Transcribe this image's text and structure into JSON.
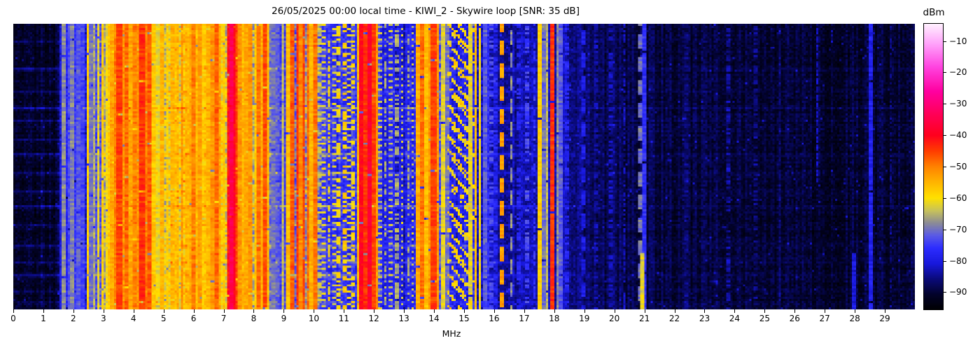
{
  "chart_data": {
    "type": "heatmap",
    "title": "26/05/2025 00:00 local time - KIWI_2 - Skywire loop [SNR: 35 dB]",
    "station": "KIWI_2",
    "antenna": "Skywire loop",
    "snr_db": 35,
    "date_label": "26/05/2025 00:00 local time",
    "xlabel": "MHz",
    "colorbar_label": "dBm",
    "x_range": [
      0,
      30
    ],
    "x_ticks": [
      0,
      1,
      2,
      3,
      4,
      5,
      6,
      7,
      8,
      9,
      10,
      11,
      12,
      13,
      14,
      15,
      16,
      17,
      18,
      19,
      20,
      21,
      22,
      23,
      24,
      25,
      26,
      27,
      28,
      29
    ],
    "value_range_dbm": [
      -95.5,
      -4.5
    ],
    "colorbar_ticks": [
      {
        "v": -10,
        "label": "−10"
      },
      {
        "v": -20,
        "label": "−20"
      },
      {
        "v": -30,
        "label": "−30"
      },
      {
        "v": -40,
        "label": "−40"
      },
      {
        "v": -50,
        "label": "−50"
      },
      {
        "v": -60,
        "label": "−60"
      },
      {
        "v": -70,
        "label": "−70"
      },
      {
        "v": -80,
        "label": "−80"
      },
      {
        "v": -90,
        "label": "−90"
      }
    ],
    "grid_cols": 430,
    "grid_rows": 137,
    "colormap_stops": [
      [
        -95.5,
        "#000004"
      ],
      [
        -91,
        "#020228"
      ],
      [
        -86,
        "#0a0a78"
      ],
      [
        -81,
        "#1818dc"
      ],
      [
        -76,
        "#2d2dff"
      ],
      [
        -72,
        "#5a5ae6"
      ],
      [
        -68,
        "#8c8c96"
      ],
      [
        -64,
        "#c8c35a"
      ],
      [
        -60,
        "#ffe100"
      ],
      [
        -55,
        "#ffb400"
      ],
      [
        -50,
        "#ff8200"
      ],
      [
        -45,
        "#ff3c00"
      ],
      [
        -40,
        "#ff001e"
      ],
      [
        -33,
        "#ff005a"
      ],
      [
        -26,
        "#ff00a0"
      ],
      [
        -18,
        "#ff46e1"
      ],
      [
        -11,
        "#ffa0fa"
      ],
      [
        -4.5,
        "#fff0ff"
      ]
    ],
    "noise_floor_dbm": [
      [
        0,
        -91
      ],
      [
        1.45,
        -91
      ],
      [
        1.55,
        -86
      ],
      [
        1.95,
        -83
      ],
      [
        2.1,
        -80
      ],
      [
        2.35,
        -79
      ],
      [
        2.6,
        -77
      ],
      [
        2.85,
        -73
      ],
      [
        3.1,
        -68
      ],
      [
        3.25,
        -63
      ],
      [
        3.45,
        -61
      ],
      [
        4.45,
        -62
      ],
      [
        4.7,
        -68
      ],
      [
        5.05,
        -66
      ],
      [
        5.25,
        -62
      ],
      [
        5.55,
        -60
      ],
      [
        6.35,
        -62
      ],
      [
        6.55,
        -63
      ],
      [
        7.05,
        -62
      ],
      [
        7.15,
        -58
      ],
      [
        7.45,
        -58
      ],
      [
        7.65,
        -62
      ],
      [
        8.0,
        -63
      ],
      [
        8.45,
        -67
      ],
      [
        8.6,
        -76
      ],
      [
        9.1,
        -75
      ],
      [
        9.35,
        -72
      ],
      [
        9.8,
        -63
      ],
      [
        10.05,
        -63
      ],
      [
        10.2,
        -71
      ],
      [
        10.4,
        -76
      ],
      [
        11.2,
        -76
      ],
      [
        11.55,
        -71
      ],
      [
        12.15,
        -72
      ],
      [
        12.35,
        -79
      ],
      [
        13.3,
        -80
      ],
      [
        13.45,
        -74
      ],
      [
        14.15,
        -74
      ],
      [
        14.35,
        -79
      ],
      [
        15.6,
        -80
      ],
      [
        16.0,
        -83
      ],
      [
        16.5,
        -84
      ],
      [
        17.3,
        -84
      ],
      [
        17.9,
        -82
      ],
      [
        18.3,
        -84
      ],
      [
        18.9,
        -86
      ],
      [
        19.5,
        -88
      ],
      [
        20.5,
        -88.5
      ],
      [
        21.2,
        -89.5
      ],
      [
        24,
        -90
      ],
      [
        27,
        -90.5
      ],
      [
        30,
        -90.5
      ]
    ],
    "streak_rows": [
      {
        "t": 0.06,
        "boost": 4
      },
      {
        "t": 0.155,
        "boost": 6
      },
      {
        "t": 0.23,
        "boost": 4
      },
      {
        "t": 0.29,
        "boost": 7
      },
      {
        "t": 0.335,
        "boost": 4
      },
      {
        "t": 0.4,
        "boost": 5
      },
      {
        "t": 0.455,
        "boost": 6
      },
      {
        "t": 0.52,
        "boost": 4
      },
      {
        "t": 0.585,
        "boost": 5
      },
      {
        "t": 0.635,
        "boost": 6
      },
      {
        "t": 0.7,
        "boost": 4
      },
      {
        "t": 0.775,
        "boost": 5
      },
      {
        "t": 0.83,
        "boost": 4
      },
      {
        "t": 0.875,
        "boost": 6
      },
      {
        "t": 0.935,
        "boost": 4
      },
      {
        "t": 0.97,
        "boost": 3
      }
    ],
    "signals": [
      [
        1.58,
        -80,
        0.05,
        "solid"
      ],
      [
        1.66,
        -68,
        0.04,
        "solid"
      ],
      [
        1.76,
        -77,
        0.05,
        "solid"
      ],
      [
        1.88,
        -73,
        0.05,
        "solid"
      ],
      [
        1.97,
        -69,
        0.04,
        "solid"
      ],
      [
        2.06,
        -75,
        0.05,
        "solid"
      ],
      [
        2.18,
        -72,
        0.06,
        "solid"
      ],
      [
        2.32,
        -74,
        0.05,
        "solid"
      ],
      [
        2.47,
        -58,
        0.05,
        "solid"
      ],
      [
        2.56,
        -70,
        0.05,
        "solid"
      ],
      [
        2.69,
        -66,
        0.06,
        "solid"
      ],
      [
        2.83,
        -62,
        0.06,
        "solid"
      ],
      [
        2.96,
        -58,
        0.05,
        "solid"
      ],
      [
        3.1,
        -61,
        0.06,
        "solid"
      ],
      [
        3.2,
        -57,
        0.05,
        "solid"
      ],
      [
        3.3,
        -54,
        0.06,
        "solid"
      ],
      [
        3.42,
        -50,
        0.07,
        "solid"
      ],
      [
        3.53,
        -45,
        0.12,
        "solid"
      ],
      [
        3.66,
        -52,
        0.06,
        "solid"
      ],
      [
        3.79,
        -48,
        0.07,
        "solid"
      ],
      [
        3.92,
        -54,
        0.06,
        "solid"
      ],
      [
        4.04,
        -50,
        0.07,
        "solid"
      ],
      [
        4.16,
        -52,
        0.05,
        "solid"
      ],
      [
        4.28,
        -44,
        0.13,
        "solid"
      ],
      [
        4.42,
        -50,
        0.06,
        "solid"
      ],
      [
        4.54,
        -47,
        0.07,
        "solid"
      ],
      [
        4.68,
        -57,
        0.06,
        "solid"
      ],
      [
        4.8,
        -62,
        0.05,
        "solid"
      ],
      [
        4.96,
        -55,
        0.06,
        "solid"
      ],
      [
        5.12,
        -58,
        0.05,
        "solid"
      ],
      [
        5.3,
        -55,
        0.06,
        "solid"
      ],
      [
        5.45,
        -57,
        0.05,
        "solid"
      ],
      [
        5.62,
        -52,
        0.06,
        "solid"
      ],
      [
        5.78,
        -56,
        0.05,
        "solid"
      ],
      [
        5.92,
        -54,
        0.05,
        "solid"
      ],
      [
        6.02,
        -50,
        0.06,
        "solid"
      ],
      [
        6.12,
        -56,
        0.05,
        "solid"
      ],
      [
        6.22,
        -53,
        0.05,
        "solid"
      ],
      [
        6.35,
        -58,
        0.05,
        "solid"
      ],
      [
        6.5,
        -55,
        0.05,
        "solid"
      ],
      [
        6.62,
        -52,
        0.06,
        "solid"
      ],
      [
        6.74,
        -48,
        0.07,
        "solid"
      ],
      [
        6.88,
        -54,
        0.05,
        "solid"
      ],
      [
        7.02,
        -57,
        0.05,
        "solid"
      ],
      [
        7.18,
        -42,
        0.06,
        "solid"
      ],
      [
        7.25,
        -34,
        0.06,
        "solid"
      ],
      [
        7.32,
        -40,
        0.06,
        "solid"
      ],
      [
        7.4,
        -45,
        0.05,
        "solid"
      ],
      [
        7.52,
        -52,
        0.05,
        "solid"
      ],
      [
        7.65,
        -56,
        0.05,
        "solid"
      ],
      [
        7.76,
        -54,
        0.05,
        "solid"
      ],
      [
        7.9,
        -52,
        0.06,
        "solid"
      ],
      [
        8.05,
        -57,
        0.05,
        "solid"
      ],
      [
        8.14,
        -49,
        0.06,
        "solid"
      ],
      [
        8.24,
        -55,
        0.05,
        "solid"
      ],
      [
        8.35,
        -46,
        0.08,
        "solid"
      ],
      [
        8.46,
        -56,
        0.05,
        "solid"
      ],
      [
        8.66,
        -70,
        0.05,
        "solid"
      ],
      [
        8.8,
        -72,
        0.05,
        "solid"
      ],
      [
        8.96,
        -64,
        0.05,
        "solid"
      ],
      [
        9.12,
        -56,
        0.05,
        "solid"
      ],
      [
        9.27,
        -47,
        0.06,
        "solid"
      ],
      [
        9.45,
        -44,
        0.06,
        "solid"
      ],
      [
        9.57,
        -51,
        0.05,
        "solid"
      ],
      [
        9.66,
        -45,
        0.06,
        "solid"
      ],
      [
        9.8,
        -48,
        0.06,
        "solid"
      ],
      [
        9.92,
        -55,
        0.05,
        "solid"
      ],
      [
        10.04,
        -49,
        0.06,
        "solid"
      ],
      [
        10.18,
        -64,
        0.05,
        "intermittent"
      ],
      [
        10.34,
        -62,
        0.05,
        "dotted"
      ],
      [
        10.5,
        -60,
        0.05,
        "intermittent"
      ],
      [
        10.65,
        -63,
        0.05,
        "dotted"
      ],
      [
        10.82,
        -60,
        0.05,
        "intermittent"
      ],
      [
        11.0,
        -58,
        0.05,
        "intermittent"
      ],
      [
        11.15,
        -62,
        0.05,
        "dotted"
      ],
      [
        11.32,
        -60,
        0.05,
        "intermittent"
      ],
      [
        11.48,
        -55,
        0.05,
        "solid"
      ],
      [
        11.58,
        -40,
        0.06,
        "solid"
      ],
      [
        11.74,
        -44,
        0.06,
        "solid"
      ],
      [
        11.88,
        -38,
        0.06,
        "solid"
      ],
      [
        11.98,
        -45,
        0.06,
        "solid"
      ],
      [
        12.08,
        -52,
        0.05,
        "solid"
      ],
      [
        12.2,
        -64,
        0.05,
        "dotted"
      ],
      [
        12.38,
        -66,
        0.05,
        "intermittent"
      ],
      [
        12.55,
        -64,
        0.05,
        "dotted"
      ],
      [
        12.75,
        -66,
        0.05,
        "intermittent"
      ],
      [
        12.95,
        -63,
        0.05,
        "dotted"
      ],
      [
        13.15,
        -66,
        0.05,
        "intermittent"
      ],
      [
        13.3,
        -64,
        0.05,
        "dotted"
      ],
      [
        13.45,
        -54,
        0.05,
        "solid"
      ],
      [
        13.58,
        -49,
        0.06,
        "solid"
      ],
      [
        13.72,
        -56,
        0.05,
        "solid"
      ],
      [
        13.85,
        -52,
        0.05,
        "solid"
      ],
      [
        13.98,
        -45,
        0.12,
        "solid"
      ],
      [
        14.12,
        -52,
        0.06,
        "solid"
      ],
      [
        14.3,
        -62,
        0.05,
        "solid"
      ],
      [
        14.42,
        -70,
        0.05,
        "solid"
      ],
      [
        15.22,
        -62,
        0.04,
        "solid"
      ],
      [
        15.38,
        -56,
        0.04,
        "solid"
      ],
      [
        15.52,
        -60,
        0.04,
        "solid"
      ],
      [
        15.68,
        -72,
        0.05,
        "solid"
      ],
      [
        15.78,
        -76,
        0.04,
        "intermittent"
      ],
      [
        15.92,
        -74,
        0.04,
        "intermittent"
      ],
      [
        16.05,
        -78,
        0.04,
        "intermittent"
      ],
      [
        16.28,
        -53,
        0.09,
        "dashed"
      ],
      [
        16.56,
        -68,
        0.05,
        "dashed"
      ],
      [
        16.8,
        -78,
        0.05,
        "intermittent"
      ],
      [
        17.1,
        -74,
        0.05,
        "intermittent"
      ],
      [
        17.35,
        -76,
        0.04,
        "intermittent"
      ],
      [
        17.5,
        -58,
        0.05,
        "solid"
      ],
      [
        17.64,
        -70,
        0.05,
        "solid"
      ],
      [
        17.76,
        -65,
        0.04,
        "solid"
      ],
      [
        17.95,
        -44,
        0.06,
        "solid"
      ],
      [
        18.1,
        -68,
        0.05,
        "solid"
      ],
      [
        18.22,
        -72,
        0.05,
        "solid"
      ],
      [
        18.42,
        -78,
        0.05,
        "intermittent"
      ],
      [
        19.0,
        -80,
        0.05,
        "dashed"
      ],
      [
        19.4,
        -84,
        0.05,
        "intermittent"
      ],
      [
        19.9,
        -83,
        0.05,
        "intermittent"
      ],
      [
        20.35,
        -83,
        0.04,
        "intermittent"
      ],
      [
        20.88,
        -70,
        0.05,
        "dashed"
      ],
      [
        21.02,
        -76,
        0.05,
        "solid"
      ],
      [
        20.95,
        -62,
        0.05,
        "partial-bottom"
      ],
      [
        22.4,
        -86,
        0.05,
        "intermittent"
      ],
      [
        23.8,
        -84,
        0.04,
        "intermittent"
      ],
      [
        24.7,
        -86,
        0.04,
        "intermittent"
      ],
      [
        25.5,
        -86,
        0.04,
        "intermittent"
      ],
      [
        26.75,
        -83,
        0.04,
        "partial-top"
      ],
      [
        27.98,
        -81,
        0.06,
        "partial-bottom"
      ],
      [
        28.55,
        -79,
        0.05,
        "solid"
      ],
      [
        29.2,
        -86,
        0.04,
        "intermittent"
      ]
    ],
    "sweeps": [
      {
        "f0": 14.5,
        "f1": 15.3,
        "period": 15,
        "phase": 0,
        "level": -57
      },
      {
        "f0": 14.45,
        "f1": 15.2,
        "period": 15,
        "phase": 7,
        "level": -59
      },
      {
        "f0": 14.6,
        "f1": 15.35,
        "period": 15,
        "phase": 11,
        "level": -60
      }
    ]
  }
}
